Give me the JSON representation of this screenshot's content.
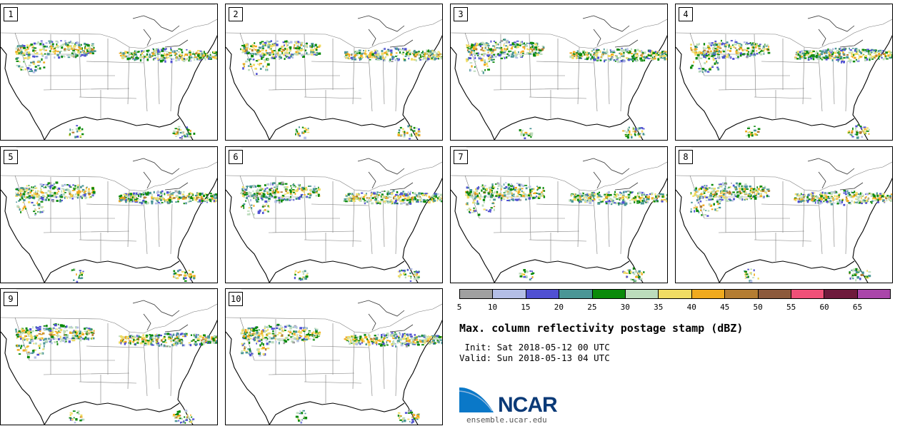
{
  "panels": [
    {
      "label": "1"
    },
    {
      "label": "2"
    },
    {
      "label": "3"
    },
    {
      "label": "4"
    },
    {
      "label": "5"
    },
    {
      "label": "6"
    },
    {
      "label": "7"
    },
    {
      "label": "8"
    },
    {
      "label": "9"
    },
    {
      "label": "10"
    }
  ],
  "colorbar": {
    "colors": [
      "#a0a0a0",
      "#b4bee6",
      "#5050d2",
      "#4a9696",
      "#0a8a0a",
      "#bcdcbc",
      "#f0dc64",
      "#f0aa1e",
      "#b47d32",
      "#8c5a3c",
      "#f05078",
      "#6e1a3c",
      "#aa46aa"
    ],
    "ticks": [
      "5",
      "10",
      "15",
      "20",
      "25",
      "30",
      "35",
      "40",
      "45",
      "50",
      "55",
      "60",
      "65"
    ]
  },
  "title": "Max. column reflectivity postage stamp (dBZ)",
  "init": " Init: Sat 2018-05-12 00 UTC",
  "valid": "Valid: Sun 2018-05-13 04 UTC",
  "logo": {
    "name": "NCAR",
    "url": "ensemble.ucar.edu"
  }
}
